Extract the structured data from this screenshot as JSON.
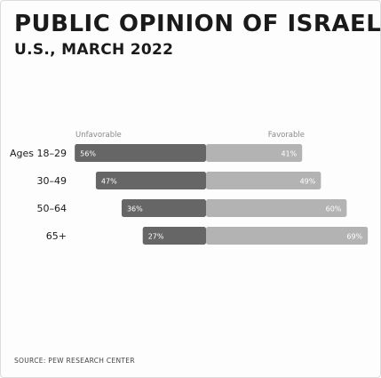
{
  "title": "PUBLIC OPINION OF ISRAEL",
  "subtitle": "U.S., MARCH 2022",
  "source": "SOURCE: PEW RESEARCH CENTER",
  "colors": {
    "unfavorable": "#666666",
    "favorable": "#b3b3b3",
    "text": "#1a1a1a",
    "series_label": "#8a8a8a"
  },
  "chart_data": {
    "type": "bar",
    "orientation": "horizontal-diverging",
    "categories": [
      "Ages 18–29",
      "30–49",
      "50–64",
      "65+"
    ],
    "series": [
      {
        "name": "Unfavorable",
        "values": [
          56,
          47,
          36,
          27
        ],
        "labels": [
          "56%",
          "47%",
          "36%",
          "27%"
        ]
      },
      {
        "name": "Favorable",
        "values": [
          41,
          49,
          60,
          69
        ],
        "labels": [
          "41%",
          "49%",
          "60%",
          "69%"
        ]
      }
    ],
    "unit": "%"
  }
}
